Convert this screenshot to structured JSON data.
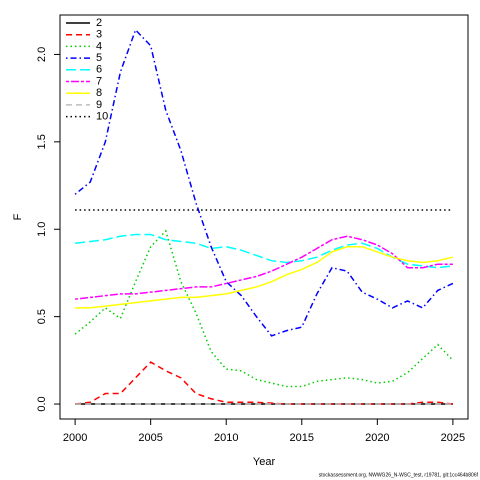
{
  "chart_data": {
    "type": "line",
    "x_label": "Year",
    "y_label": "F",
    "footer": "stockassessment.org, NWWG26_N-WSC_test, r19781, git:1cc464b806f",
    "x": [
      2000,
      2001,
      2002,
      2003,
      2004,
      2005,
      2006,
      2007,
      2008,
      2009,
      2010,
      2011,
      2012,
      2013,
      2014,
      2015,
      2016,
      2017,
      2018,
      2019,
      2020,
      2021,
      2022,
      2023,
      2024,
      2025
    ],
    "series": [
      {
        "name": "2",
        "color": "#000000",
        "values": [
          0,
          0,
          0,
          0,
          0,
          0,
          0,
          0,
          0,
          0,
          0,
          0,
          0,
          0,
          0,
          0,
          0,
          0,
          0,
          0,
          0,
          0,
          0,
          0,
          0,
          0
        ]
      },
      {
        "name": "3",
        "color": "#ff0000",
        "values": [
          0,
          0.01,
          0.06,
          0.06,
          0.15,
          0.24,
          0.19,
          0.15,
          0.06,
          0.03,
          0.01,
          0.01,
          0.01,
          0.005,
          0,
          0,
          0,
          0,
          0,
          0,
          0,
          0,
          0,
          0.01,
          0.01,
          0
        ]
      },
      {
        "name": "4",
        "color": "#00cd00",
        "values": [
          0.4,
          0.47,
          0.55,
          0.49,
          0.7,
          0.9,
          0.99,
          0.7,
          0.52,
          0.3,
          0.2,
          0.19,
          0.14,
          0.12,
          0.1,
          0.1,
          0.13,
          0.14,
          0.15,
          0.14,
          0.12,
          0.13,
          0.18,
          0.26,
          0.34,
          0.25
        ]
      },
      {
        "name": "5",
        "color": "#0000ff",
        "values": [
          1.2,
          1.27,
          1.5,
          1.9,
          2.14,
          2.05,
          1.68,
          1.45,
          1.15,
          0.9,
          0.7,
          0.62,
          0.5,
          0.39,
          0.42,
          0.44,
          0.63,
          0.78,
          0.76,
          0.64,
          0.6,
          0.55,
          0.59,
          0.55,
          0.65,
          0.69
        ]
      },
      {
        "name": "6",
        "color": "#00ffff",
        "values": [
          0.92,
          0.93,
          0.94,
          0.96,
          0.97,
          0.97,
          0.94,
          0.93,
          0.92,
          0.89,
          0.9,
          0.88,
          0.85,
          0.82,
          0.81,
          0.82,
          0.84,
          0.88,
          0.91,
          0.92,
          0.89,
          0.84,
          0.8,
          0.79,
          0.78,
          0.79
        ]
      },
      {
        "name": "7",
        "color": "#ff00ff",
        "values": [
          0.6,
          0.61,
          0.62,
          0.63,
          0.63,
          0.64,
          0.65,
          0.66,
          0.67,
          0.67,
          0.69,
          0.71,
          0.73,
          0.76,
          0.8,
          0.84,
          0.89,
          0.94,
          0.96,
          0.94,
          0.91,
          0.86,
          0.78,
          0.78,
          0.8,
          0.8
        ]
      },
      {
        "name": "8",
        "color": "#ffff00",
        "values": [
          0.55,
          0.55,
          0.56,
          0.57,
          0.58,
          0.59,
          0.6,
          0.61,
          0.61,
          0.62,
          0.63,
          0.65,
          0.67,
          0.7,
          0.74,
          0.77,
          0.81,
          0.87,
          0.9,
          0.9,
          0.87,
          0.84,
          0.82,
          0.81,
          0.82,
          0.84
        ]
      },
      {
        "name": "9",
        "color": "#bebebe",
        "values": [
          0,
          0,
          0,
          0,
          0,
          0,
          0,
          0,
          0,
          0,
          0,
          0,
          0,
          0,
          0,
          0,
          0,
          0,
          0,
          0,
          0,
          0,
          0,
          0,
          0,
          0
        ]
      },
      {
        "name": "10",
        "color": "#000000",
        "values": [
          1.11,
          1.11,
          1.11,
          1.11,
          1.11,
          1.11,
          1.11,
          1.11,
          1.11,
          1.11,
          1.11,
          1.11,
          1.11,
          1.11,
          1.11,
          1.11,
          1.11,
          1.11,
          1.11,
          1.11,
          1.11,
          1.11,
          1.11,
          1.11,
          1.11,
          1.11
        ]
      }
    ],
    "xlim": [
      1999,
      2026
    ],
    "xticks": [
      2000,
      2005,
      2010,
      2015,
      2020,
      2025
    ],
    "ylim": [
      -0.0856,
      2.2256
    ],
    "yticks": [
      {
        "value": 0,
        "label": "0.0"
      },
      0.5,
      {
        "value": 1,
        "label": "1.0"
      },
      1.5,
      {
        "value": 2,
        "label": "2.0"
      }
    ],
    "legend": "top-left"
  }
}
